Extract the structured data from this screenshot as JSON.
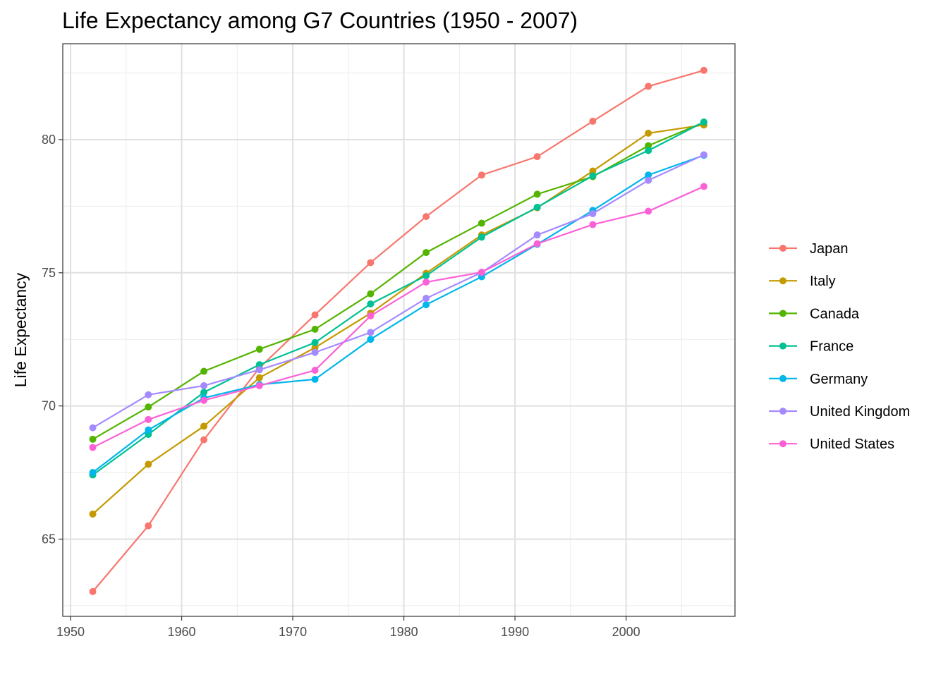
{
  "chart_data": {
    "type": "line",
    "title": "Life Expectancy among G7 Countries (1950 - 2007)",
    "xlabel": "",
    "ylabel": "Life Expectancy",
    "xlim": [
      1949.3,
      2009.8
    ],
    "ylim": [
      62.1,
      83.6
    ],
    "x_ticks": [
      1950,
      1960,
      1970,
      1980,
      1990,
      2000
    ],
    "y_ticks": [
      65,
      70,
      75,
      80
    ],
    "grid": true,
    "legend_position": "right",
    "x": [
      1952,
      1957,
      1962,
      1967,
      1972,
      1977,
      1982,
      1987,
      1992,
      1997,
      2002,
      2007
    ],
    "series": [
      {
        "name": "Japan",
        "color": "#F8766D",
        "values": [
          63.03,
          65.5,
          68.73,
          71.43,
          73.42,
          75.38,
          77.11,
          78.67,
          79.36,
          80.69,
          82.0,
          82.6
        ]
      },
      {
        "name": "Italy",
        "color": "#C49A00",
        "values": [
          65.94,
          67.81,
          69.24,
          71.06,
          72.19,
          73.48,
          74.98,
          76.42,
          77.44,
          78.82,
          80.24,
          80.55
        ]
      },
      {
        "name": "Canada",
        "color": "#53B400",
        "values": [
          68.75,
          69.96,
          71.3,
          72.13,
          72.88,
          74.21,
          75.76,
          76.86,
          77.95,
          78.61,
          79.77,
          80.65
        ]
      },
      {
        "name": "France",
        "color": "#00C094",
        "values": [
          67.41,
          68.93,
          70.51,
          71.55,
          72.38,
          73.83,
          74.89,
          76.34,
          77.46,
          78.64,
          79.59,
          80.66
        ]
      },
      {
        "name": "Germany",
        "color": "#00B6EB",
        "values": [
          67.5,
          69.1,
          70.3,
          70.8,
          71.0,
          72.5,
          73.8,
          74.85,
          76.07,
          77.34,
          78.67,
          79.41
        ]
      },
      {
        "name": "United Kingdom",
        "color": "#A58AFF",
        "values": [
          69.18,
          70.42,
          70.76,
          71.36,
          72.01,
          72.76,
          74.04,
          75.01,
          76.42,
          77.22,
          78.47,
          79.43
        ]
      },
      {
        "name": "United States",
        "color": "#FB61D7",
        "values": [
          68.44,
          69.49,
          70.21,
          70.76,
          71.34,
          73.38,
          74.65,
          75.02,
          76.09,
          76.81,
          77.31,
          78.24
        ]
      }
    ]
  }
}
